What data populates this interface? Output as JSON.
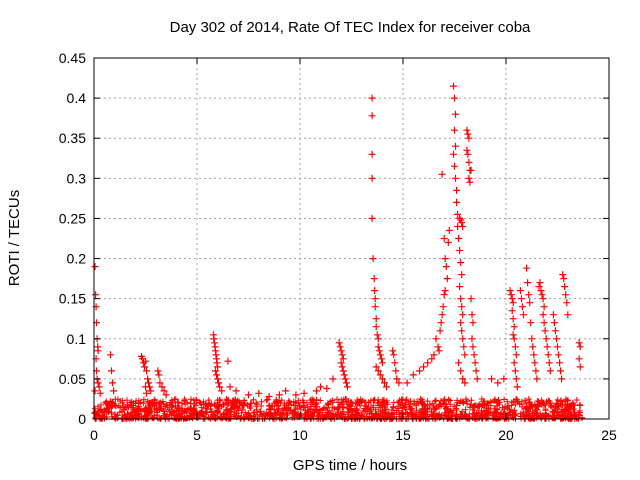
{
  "chart_data": {
    "type": "scatter",
    "title": "Day 302 of 2014, Rate Of TEC Index for receiver coba",
    "xlabel": "GPS time / hours",
    "ylabel": "ROTI / TECUs",
    "xlim": [
      0,
      25
    ],
    "ylim": [
      0,
      0.45
    ],
    "xticks": [
      0,
      5,
      10,
      15,
      20,
      25
    ],
    "yticks": [
      0,
      0.05,
      0.1,
      0.15,
      0.2,
      0.25,
      0.3,
      0.35,
      0.4,
      0.45
    ],
    "xtick_labels": [
      "0",
      "5",
      "10",
      "15",
      "20",
      "25"
    ],
    "ytick_labels": [
      "0",
      "0.05",
      "0.1",
      "0.15",
      "0.2",
      "0.25",
      "0.3",
      "0.35",
      "0.4",
      "0.45"
    ],
    "grid": true,
    "marker": "+",
    "marker_color": "#ff0000",
    "data_extent_hours": [
      0,
      23.7
    ],
    "baseline_range": [
      0.0,
      0.025
    ],
    "series": [
      {
        "name": "ROTI",
        "points": [
          [
            0.05,
            0.19
          ],
          [
            0.08,
            0.155
          ],
          [
            0.1,
            0.14
          ],
          [
            0.12,
            0.12
          ],
          [
            0.15,
            0.1
          ],
          [
            0.18,
            0.09
          ],
          [
            0.2,
            0.085
          ],
          [
            0.1,
            0.075
          ],
          [
            0.12,
            0.06
          ],
          [
            0.15,
            0.05
          ],
          [
            0.2,
            0.045
          ],
          [
            0.25,
            0.04
          ],
          [
            0.05,
            0.035
          ],
          [
            0.3,
            0.032
          ],
          [
            0.8,
            0.08
          ],
          [
            0.85,
            0.06
          ],
          [
            0.9,
            0.045
          ],
          [
            0.95,
            0.035
          ],
          [
            2.3,
            0.078
          ],
          [
            2.35,
            0.075
          ],
          [
            2.4,
            0.07
          ],
          [
            2.45,
            0.065
          ],
          [
            2.5,
            0.072
          ],
          [
            2.55,
            0.06
          ],
          [
            2.6,
            0.05
          ],
          [
            2.65,
            0.045
          ],
          [
            2.7,
            0.04
          ],
          [
            2.75,
            0.035
          ],
          [
            2.5,
            0.04
          ],
          [
            2.55,
            0.032
          ],
          [
            3.1,
            0.06
          ],
          [
            3.15,
            0.055
          ],
          [
            3.2,
            0.045
          ],
          [
            3.3,
            0.04
          ],
          [
            3.4,
            0.035
          ],
          [
            3.5,
            0.03
          ],
          [
            5.8,
            0.105
          ],
          [
            5.82,
            0.1
          ],
          [
            5.85,
            0.095
          ],
          [
            5.88,
            0.09
          ],
          [
            5.9,
            0.085
          ],
          [
            5.92,
            0.08
          ],
          [
            5.95,
            0.075
          ],
          [
            5.97,
            0.07
          ],
          [
            6.0,
            0.065
          ],
          [
            5.9,
            0.06
          ],
          [
            5.95,
            0.055
          ],
          [
            6.0,
            0.05
          ],
          [
            6.05,
            0.045
          ],
          [
            6.1,
            0.04
          ],
          [
            6.2,
            0.035
          ],
          [
            6.5,
            0.072
          ],
          [
            6.6,
            0.04
          ],
          [
            6.9,
            0.035
          ],
          [
            7.5,
            0.03
          ],
          [
            8.0,
            0.032
          ],
          [
            8.5,
            0.028
          ],
          [
            9.0,
            0.03
          ],
          [
            9.3,
            0.035
          ],
          [
            9.8,
            0.03
          ],
          [
            10.2,
            0.032
          ],
          [
            10.8,
            0.035
          ],
          [
            11.0,
            0.04
          ],
          [
            11.3,
            0.038
          ],
          [
            11.6,
            0.05
          ],
          [
            11.9,
            0.095
          ],
          [
            11.95,
            0.09
          ],
          [
            12.0,
            0.085
          ],
          [
            12.05,
            0.08
          ],
          [
            12.1,
            0.075
          ],
          [
            12.0,
            0.07
          ],
          [
            12.05,
            0.065
          ],
          [
            12.1,
            0.06
          ],
          [
            12.15,
            0.055
          ],
          [
            12.2,
            0.05
          ],
          [
            12.25,
            0.045
          ],
          [
            12.3,
            0.04
          ],
          [
            13.5,
            0.4
          ],
          [
            13.5,
            0.378
          ],
          [
            13.5,
            0.33
          ],
          [
            13.5,
            0.3
          ],
          [
            13.5,
            0.25
          ],
          [
            13.55,
            0.2
          ],
          [
            13.6,
            0.175
          ],
          [
            13.62,
            0.16
          ],
          [
            13.65,
            0.15
          ],
          [
            13.65,
            0.14
          ],
          [
            13.7,
            0.125
          ],
          [
            13.7,
            0.115
          ],
          [
            13.75,
            0.105
          ],
          [
            13.8,
            0.1
          ],
          [
            13.8,
            0.09
          ],
          [
            13.85,
            0.085
          ],
          [
            13.9,
            0.08
          ],
          [
            13.95,
            0.075
          ],
          [
            14.0,
            0.07
          ],
          [
            13.7,
            0.065
          ],
          [
            13.8,
            0.06
          ],
          [
            13.9,
            0.055
          ],
          [
            14.0,
            0.05
          ],
          [
            14.1,
            0.045
          ],
          [
            14.2,
            0.04
          ],
          [
            14.5,
            0.085
          ],
          [
            14.55,
            0.08
          ],
          [
            14.6,
            0.07
          ],
          [
            14.65,
            0.06
          ],
          [
            14.7,
            0.05
          ],
          [
            14.8,
            0.045
          ],
          [
            15.2,
            0.045
          ],
          [
            15.5,
            0.055
          ],
          [
            15.8,
            0.06
          ],
          [
            16.0,
            0.065
          ],
          [
            16.2,
            0.07
          ],
          [
            16.4,
            0.075
          ],
          [
            16.5,
            0.08
          ],
          [
            16.6,
            0.1
          ],
          [
            16.7,
            0.09
          ],
          [
            16.75,
            0.085
          ],
          [
            16.8,
            0.11
          ],
          [
            16.85,
            0.12
          ],
          [
            16.9,
            0.13
          ],
          [
            16.95,
            0.14
          ],
          [
            17.0,
            0.155
          ],
          [
            17.05,
            0.16
          ],
          [
            16.9,
            0.305
          ],
          [
            17.0,
            0.225
          ],
          [
            17.05,
            0.2
          ],
          [
            17.1,
            0.19
          ],
          [
            17.15,
            0.175
          ],
          [
            17.2,
            0.22
          ],
          [
            17.25,
            0.235
          ],
          [
            17.45,
            0.415
          ],
          [
            17.5,
            0.4
          ],
          [
            17.55,
            0.38
          ],
          [
            17.5,
            0.36
          ],
          [
            17.55,
            0.34
          ],
          [
            17.45,
            0.33
          ],
          [
            17.5,
            0.315
          ],
          [
            17.55,
            0.3
          ],
          [
            17.6,
            0.285
          ],
          [
            17.6,
            0.27
          ],
          [
            17.65,
            0.255
          ],
          [
            17.65,
            0.24
          ],
          [
            17.7,
            0.225
          ],
          [
            17.75,
            0.21
          ],
          [
            17.8,
            0.195
          ],
          [
            17.85,
            0.18
          ],
          [
            17.75,
            0.165
          ],
          [
            17.8,
            0.15
          ],
          [
            17.85,
            0.14
          ],
          [
            17.9,
            0.13
          ],
          [
            17.8,
            0.12
          ],
          [
            17.85,
            0.11
          ],
          [
            17.9,
            0.1
          ],
          [
            17.95,
            0.09
          ],
          [
            18.0,
            0.08
          ],
          [
            17.7,
            0.07
          ],
          [
            17.8,
            0.06
          ],
          [
            17.9,
            0.05
          ],
          [
            18.0,
            0.045
          ],
          [
            17.75,
            0.25
          ],
          [
            17.8,
            0.248
          ],
          [
            17.85,
            0.245
          ],
          [
            17.9,
            0.24
          ],
          [
            18.1,
            0.36
          ],
          [
            18.15,
            0.355
          ],
          [
            18.2,
            0.35
          ],
          [
            18.1,
            0.335
          ],
          [
            18.15,
            0.33
          ],
          [
            18.2,
            0.32
          ],
          [
            18.25,
            0.31
          ],
          [
            18.2,
            0.3
          ],
          [
            18.25,
            0.295
          ],
          [
            18.3,
            0.31
          ],
          [
            18.3,
            0.15
          ],
          [
            18.35,
            0.13
          ],
          [
            18.4,
            0.12
          ],
          [
            18.35,
            0.1
          ],
          [
            18.4,
            0.09
          ],
          [
            18.45,
            0.08
          ],
          [
            18.5,
            0.07
          ],
          [
            18.55,
            0.06
          ],
          [
            18.6,
            0.05
          ],
          [
            19.3,
            0.05
          ],
          [
            19.6,
            0.045
          ],
          [
            19.9,
            0.05
          ],
          [
            20.2,
            0.16
          ],
          [
            20.25,
            0.155
          ],
          [
            20.3,
            0.15
          ],
          [
            20.35,
            0.145
          ],
          [
            20.3,
            0.135
          ],
          [
            20.35,
            0.125
          ],
          [
            20.4,
            0.115
          ],
          [
            20.35,
            0.105
          ],
          [
            20.4,
            0.1
          ],
          [
            20.45,
            0.09
          ],
          [
            20.5,
            0.08
          ],
          [
            20.4,
            0.07
          ],
          [
            20.45,
            0.06
          ],
          [
            20.5,
            0.05
          ],
          [
            20.55,
            0.04
          ],
          [
            20.7,
            0.16
          ],
          [
            20.75,
            0.15
          ],
          [
            20.8,
            0.14
          ],
          [
            20.85,
            0.13
          ],
          [
            21.0,
            0.188
          ],
          [
            21.05,
            0.17
          ],
          [
            21.1,
            0.155
          ],
          [
            21.15,
            0.145
          ],
          [
            21.2,
            0.12
          ],
          [
            21.25,
            0.1
          ],
          [
            21.3,
            0.09
          ],
          [
            21.35,
            0.08
          ],
          [
            21.4,
            0.07
          ],
          [
            21.45,
            0.06
          ],
          [
            21.5,
            0.05
          ],
          [
            21.6,
            0.165
          ],
          [
            21.65,
            0.17
          ],
          [
            21.7,
            0.16
          ],
          [
            21.75,
            0.155
          ],
          [
            21.8,
            0.15
          ],
          [
            21.85,
            0.14
          ],
          [
            21.8,
            0.13
          ],
          [
            21.85,
            0.12
          ],
          [
            21.9,
            0.11
          ],
          [
            21.95,
            0.1
          ],
          [
            22.0,
            0.09
          ],
          [
            22.05,
            0.08
          ],
          [
            22.1,
            0.07
          ],
          [
            22.15,
            0.06
          ],
          [
            22.3,
            0.13
          ],
          [
            22.35,
            0.12
          ],
          [
            22.4,
            0.11
          ],
          [
            22.45,
            0.1
          ],
          [
            22.5,
            0.09
          ],
          [
            22.55,
            0.08
          ],
          [
            22.6,
            0.07
          ],
          [
            22.65,
            0.06
          ],
          [
            22.7,
            0.05
          ],
          [
            22.75,
            0.18
          ],
          [
            22.8,
            0.175
          ],
          [
            22.85,
            0.165
          ],
          [
            22.9,
            0.155
          ],
          [
            22.95,
            0.145
          ],
          [
            23.0,
            0.13
          ],
          [
            23.55,
            0.095
          ],
          [
            23.6,
            0.09
          ],
          [
            23.55,
            0.075
          ],
          [
            23.6,
            0.065
          ]
        ]
      }
    ]
  }
}
